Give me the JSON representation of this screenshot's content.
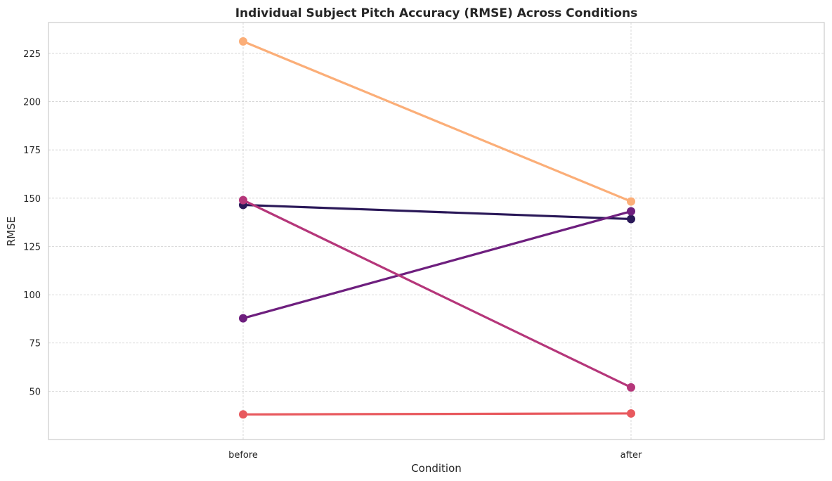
{
  "chart_data": {
    "type": "line",
    "title": "Individual Subject Pitch Accuracy (RMSE) Across Conditions",
    "xlabel": "Condition",
    "ylabel": "RMSE",
    "categories": [
      "before",
      "after"
    ],
    "yticks": [
      50,
      75,
      100,
      125,
      150,
      175,
      200,
      225
    ],
    "ylim": [
      25,
      241
    ],
    "grid": true,
    "series": [
      {
        "values": [
          146.5,
          139.2
        ],
        "color": "#2a1858"
      },
      {
        "values": [
          87.8,
          143.2
        ],
        "color": "#6e1f7e"
      },
      {
        "values": [
          149.0,
          52.0
        ],
        "color": "#b5367a"
      },
      {
        "values": [
          38.0,
          38.5
        ],
        "color": "#e8595e"
      },
      {
        "values": [
          231.2,
          148.3
        ],
        "color": "#fbae78"
      }
    ]
  }
}
